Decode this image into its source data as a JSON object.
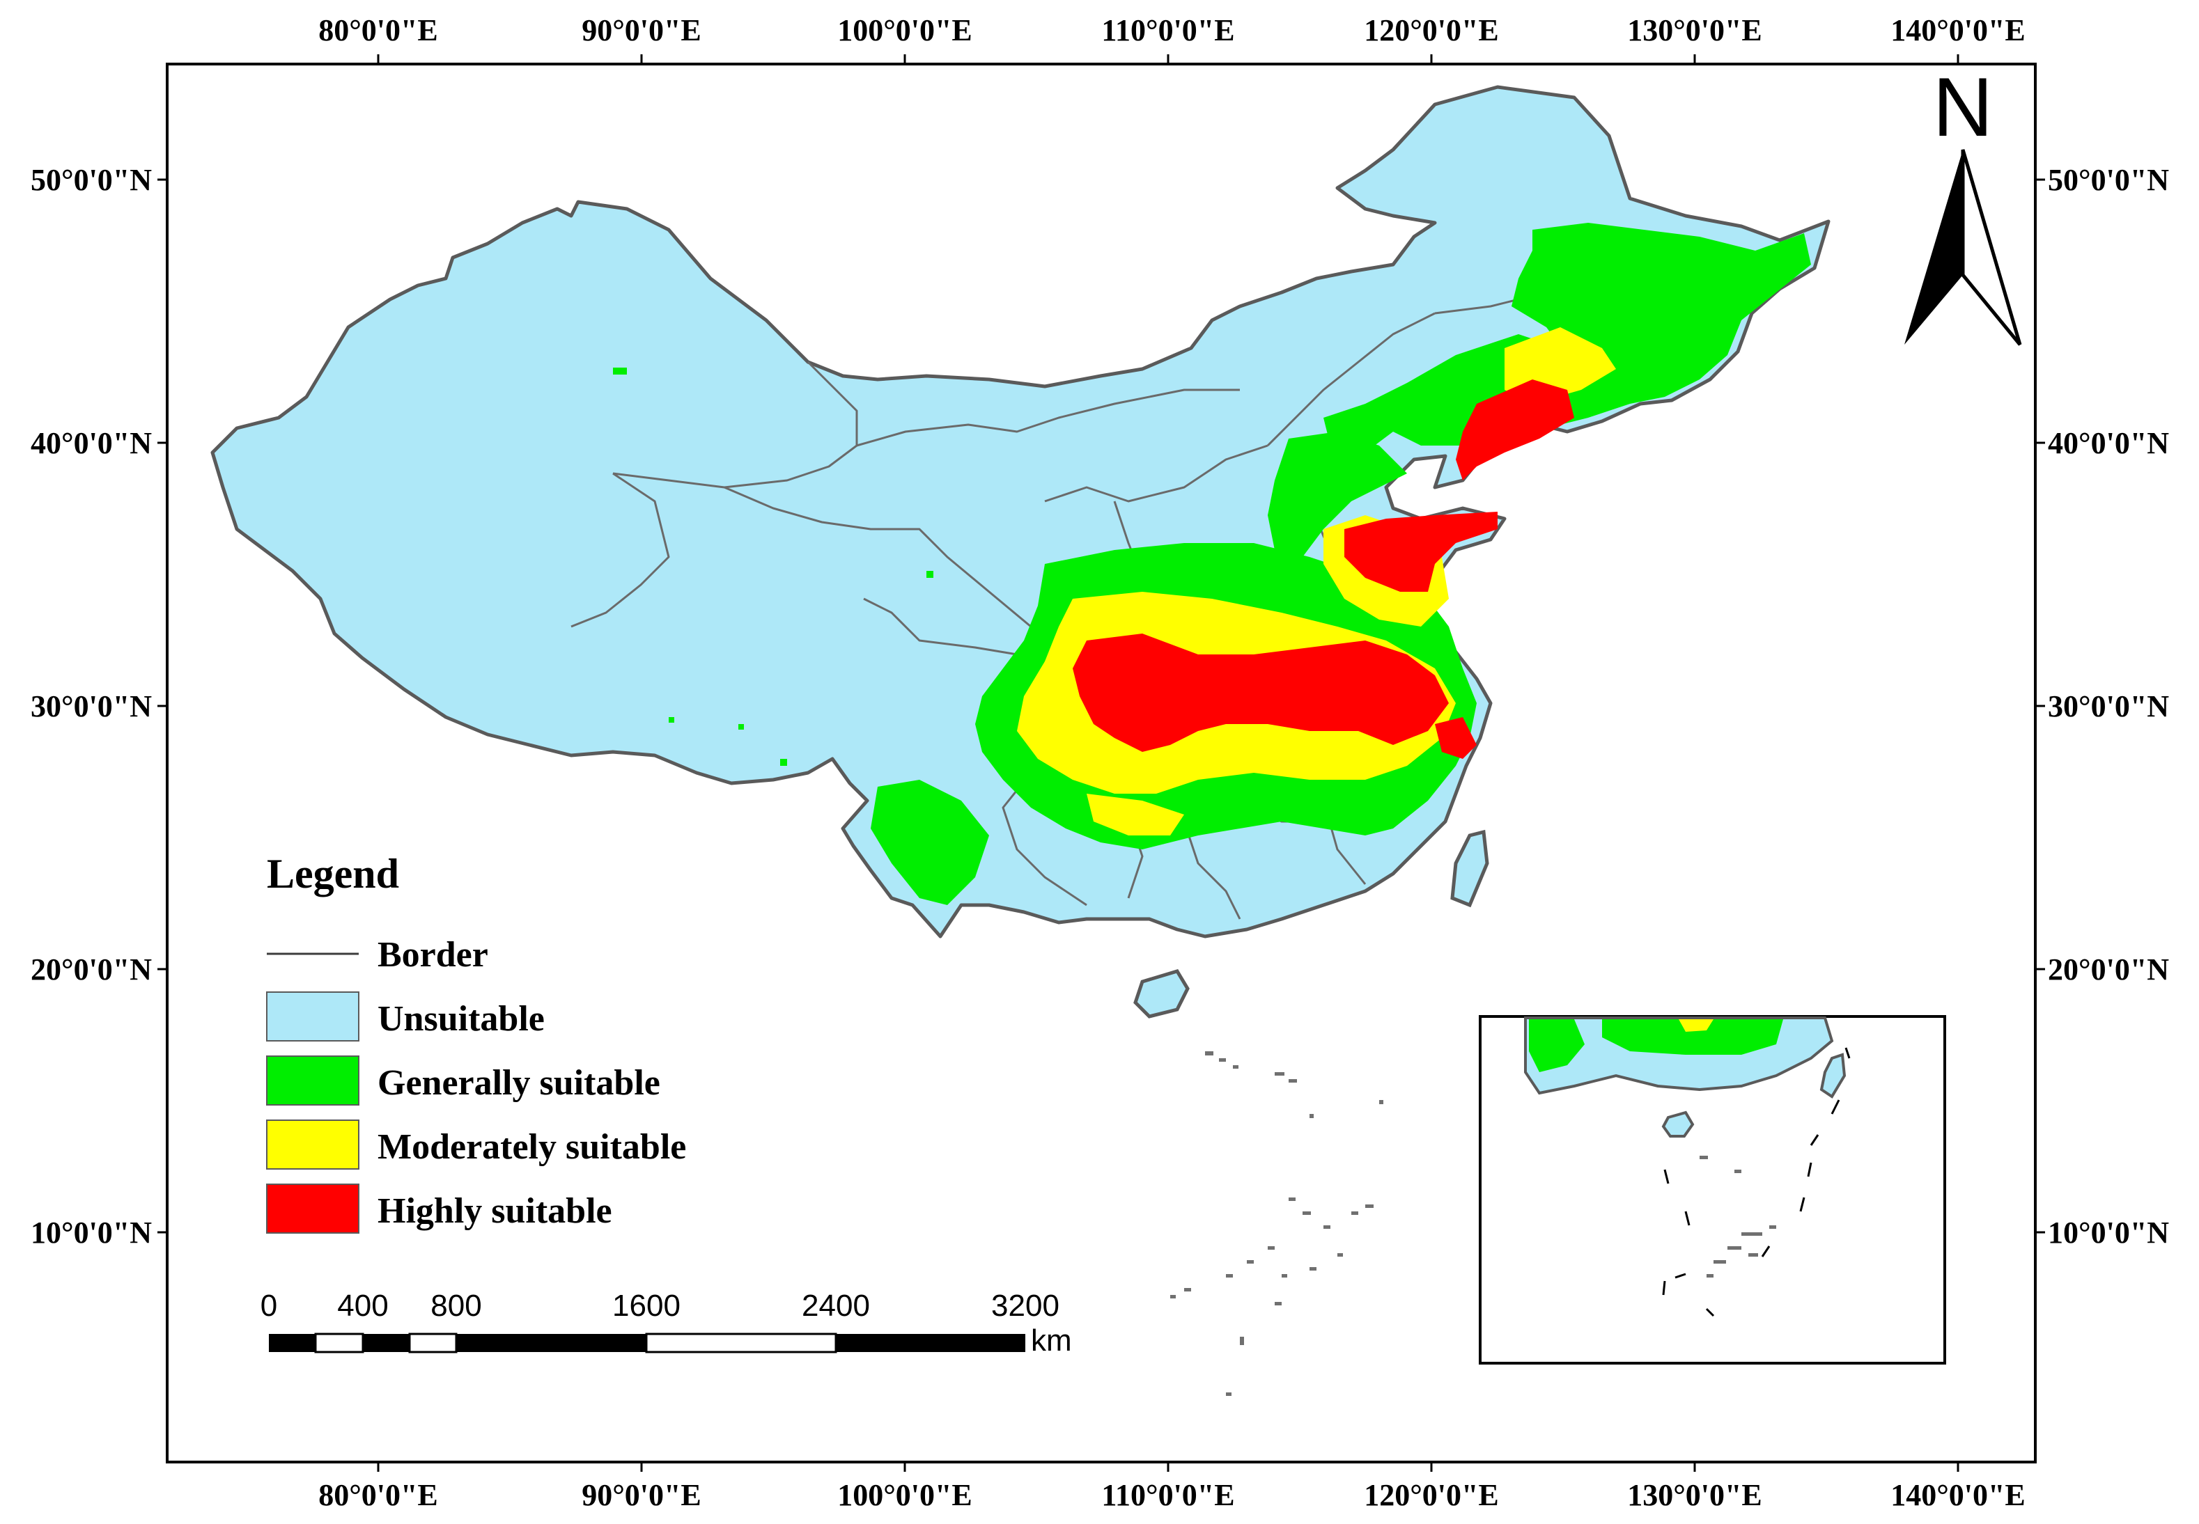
{
  "axes": {
    "longitude_labels": [
      "80°0'0\"E",
      "90°0'0\"E",
      "100°0'0\"E",
      "110°0'0\"E",
      "120°0'0\"E",
      "130°0'0\"E",
      "140°0'0\"E"
    ],
    "latitude_labels": [
      "50°0'0\"N",
      "40°0'0\"N",
      "30°0'0\"N",
      "20°0'0\"N",
      "10°0'0\"N"
    ]
  },
  "north_arrow": {
    "letter": "N"
  },
  "legend": {
    "title": "Legend",
    "items": [
      {
        "label": "Border",
        "kind": "line",
        "color": "#3c3c3c"
      },
      {
        "label": "Unsuitable",
        "kind": "fill",
        "color": "#aee8f8"
      },
      {
        "label": "Generally suitable",
        "kind": "fill",
        "color": "#00ee00"
      },
      {
        "label": "Moderately suitable",
        "kind": "fill",
        "color": "#ffff00"
      },
      {
        "label": "Highly suitable",
        "kind": "fill",
        "color": "#ff0000"
      }
    ]
  },
  "scale_bar": {
    "ticks": [
      "0",
      "400",
      "800",
      "1600",
      "2400",
      "3200"
    ],
    "unit": "km"
  },
  "colors": {
    "land": "#aee8f8",
    "border": "#5a5a5a",
    "generally": "#00ee00",
    "moderately": "#ffff00",
    "highly": "#ff0000",
    "islands": "#707070"
  }
}
